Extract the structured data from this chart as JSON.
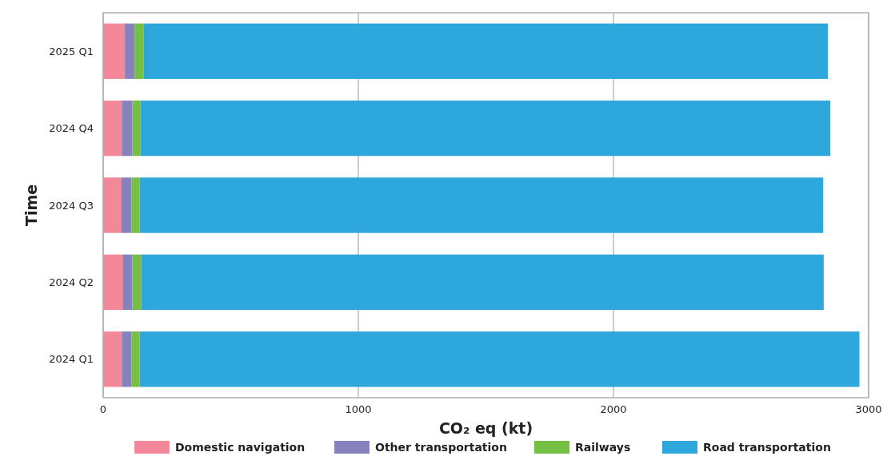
{
  "chart_data": {
    "type": "bar",
    "orientation": "horizontal",
    "stacked": true,
    "xlabel": "CO₂ eq (kt)",
    "ylabel": "Time",
    "categories": [
      "2025 Q1",
      "2024 Q4",
      "2024 Q3",
      "2024 Q2",
      "2024 Q1"
    ],
    "series": [
      {
        "name": "Domestic navigation",
        "color": "#f4889b",
        "values": [
          85,
          73,
          70,
          76,
          73
        ]
      },
      {
        "name": "Other transportation",
        "color": "#8782bd",
        "values": [
          38,
          41,
          41,
          38,
          38
        ]
      },
      {
        "name": "Railways",
        "color": "#74bf44",
        "values": [
          35,
          32,
          32,
          35,
          32
        ]
      },
      {
        "name": "Road transportation",
        "color": "#2ea7dc",
        "values": [
          2682,
          2704,
          2679,
          2675,
          2821
        ]
      }
    ],
    "xlim": [
      0,
      3000
    ],
    "xticks": [
      0,
      1000,
      2000,
      3000
    ],
    "grid": "x",
    "legend": "bottom"
  }
}
